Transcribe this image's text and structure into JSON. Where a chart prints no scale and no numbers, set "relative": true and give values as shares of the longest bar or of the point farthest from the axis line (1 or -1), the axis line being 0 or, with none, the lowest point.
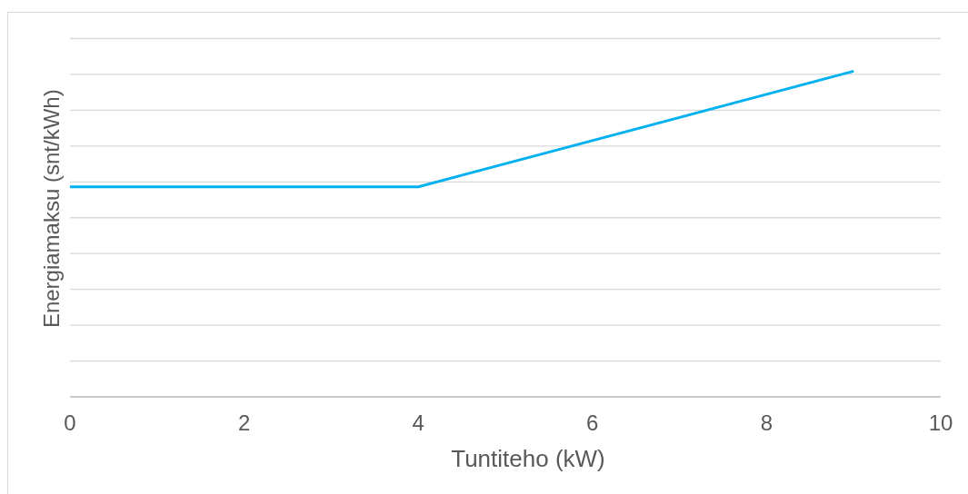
{
  "chart_data": {
    "type": "line",
    "xlabel": "Tuntiteho (kW)",
    "ylabel": "Energiamaksu (snt/kWh)",
    "x": [
      0,
      4,
      9
    ],
    "values": [
      0.645,
      0.645,
      1
    ],
    "color": "#00b0f0",
    "relative": true,
    "xlim": [
      0,
      10
    ],
    "xticks": [
      0,
      2,
      4,
      6,
      8,
      10
    ],
    "grid": "y",
    "marker": "none",
    "line_style": "solid"
  }
}
